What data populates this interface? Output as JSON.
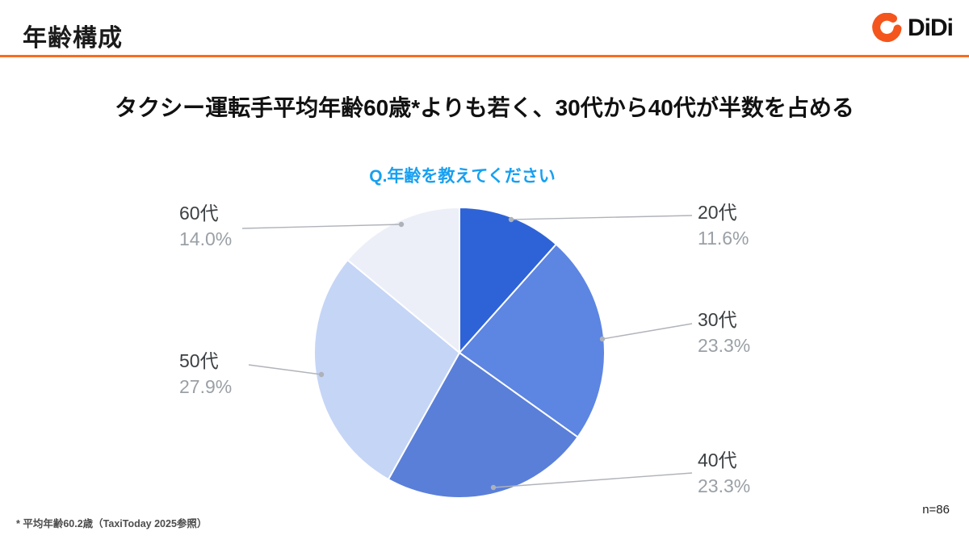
{
  "header": {
    "title": "年齢構成",
    "brand": "DiDi"
  },
  "headline": "タクシー運転手平均年齢60歳*よりも若く、30代から40代が半数を占める",
  "chart_data": {
    "type": "pie",
    "title": "Q.年齢を教えてください",
    "start_angle_deg": 0,
    "direction": "clockwise",
    "slices": [
      {
        "key": "20s",
        "label": "20代",
        "value": 11.6,
        "pct_label": "11.6%",
        "color": "#2e63d8"
      },
      {
        "key": "30s",
        "label": "30代",
        "value": 23.3,
        "pct_label": "23.3%",
        "color": "#5d85e2"
      },
      {
        "key": "40s",
        "label": "40代",
        "value": 23.3,
        "pct_label": "23.3%",
        "color": "#5a7fd9"
      },
      {
        "key": "50s",
        "label": "50代",
        "value": 27.9,
        "pct_label": "27.9%",
        "color": "#c5d5f6"
      },
      {
        "key": "60s",
        "label": "60代",
        "value": 14.0,
        "pct_label": "14.0%",
        "color": "#eceff8"
      }
    ],
    "sample_size": "n=86",
    "legend_position": "callout-labels",
    "grid": false
  },
  "footnote": "* 平均年齢60.2歳（TaxiToday 2025参照）",
  "colors": {
    "accent_orange": "#fb6a20",
    "chart_title_blue": "#17a0f1",
    "label_text": "#3c4043",
    "pct_text": "#9aa0a6"
  }
}
